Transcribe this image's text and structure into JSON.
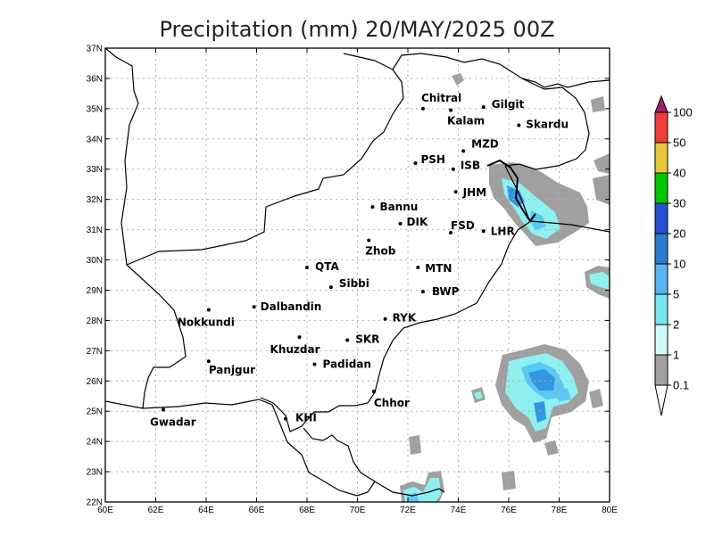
{
  "title": "Precipitation (mm) 20/MAY/2025 00Z",
  "x_ticks": [
    "60E",
    "62E",
    "64E",
    "66E",
    "68E",
    "70E",
    "72E",
    "74E",
    "76E",
    "78E",
    "80E"
  ],
  "y_ticks": [
    "22N",
    "23N",
    "24N",
    "25N",
    "26N",
    "27N",
    "28N",
    "29N",
    "30N",
    "31N",
    "32N",
    "33N",
    "34N",
    "35N",
    "36N",
    "37N"
  ],
  "lon_range": [
    60,
    80
  ],
  "lat_range": [
    22,
    37
  ],
  "grid": true,
  "colors": {
    "land": "#ffffff",
    "gray": "#a0a0a0",
    "pale": "#d4fcfc",
    "cyan": "#90f0f0",
    "light_blue": "#5ac8f0",
    "blue": "#3296e0",
    "dark_blue": "#1e5fc8"
  },
  "legend": {
    "labels": [
      "100",
      "50",
      "40",
      "30",
      "20",
      "10",
      "5",
      "2",
      "1",
      "0.1"
    ],
    "colors": [
      "#a0206e",
      "#f03c3c",
      "#e6c83c",
      "#00c800",
      "#2850d2",
      "#2a7ccc",
      "#5ab4f0",
      "#78e6f0",
      "#d2fafa",
      "#a0a0a0",
      "#ffffff"
    ]
  },
  "cities": [
    {
      "name": "Chitral",
      "lon": 72.6,
      "lat": 35.0,
      "dx": -2,
      "dy": -8
    },
    {
      "name": "Gilgit",
      "lon": 75.0,
      "lat": 35.05,
      "dx": 9,
      "dy": 1
    },
    {
      "name": "Kalam",
      "lon": 73.7,
      "lat": 34.95,
      "dx": -4,
      "dy": 16
    },
    {
      "name": "Skardu",
      "lon": 76.4,
      "lat": 34.45,
      "dx": 8,
      "dy": 3
    },
    {
      "name": "MZD",
      "lon": 74.2,
      "lat": 33.6,
      "dx": 9,
      "dy": -4
    },
    {
      "name": "PSH",
      "lon": 72.3,
      "lat": 33.2,
      "dx": 6,
      "dy": 0
    },
    {
      "name": "ISB",
      "lon": 73.8,
      "lat": 33.0,
      "dx": 8,
      "dy": 0
    },
    {
      "name": "JHM",
      "lon": 73.9,
      "lat": 32.25,
      "dx": 8,
      "dy": 5
    },
    {
      "name": "Bannu",
      "lon": 70.6,
      "lat": 31.75,
      "dx": 8,
      "dy": 4
    },
    {
      "name": "DIK",
      "lon": 71.7,
      "lat": 31.2,
      "dx": 7,
      "dy": 2
    },
    {
      "name": "FSD",
      "lon": 73.7,
      "lat": 30.9,
      "dx": 0,
      "dy": -4
    },
    {
      "name": "LHR",
      "lon": 75.0,
      "lat": 30.95,
      "dx": 8,
      "dy": 4
    },
    {
      "name": "Zhob",
      "lon": 70.45,
      "lat": 30.65,
      "dx": -4,
      "dy": 16
    },
    {
      "name": "QTA",
      "lon": 68.0,
      "lat": 29.75,
      "dx": 9,
      "dy": 3
    },
    {
      "name": "MTN",
      "lon": 72.4,
      "lat": 29.75,
      "dx": 8,
      "dy": 5
    },
    {
      "name": "Sibbi",
      "lon": 68.95,
      "lat": 29.1,
      "dx": 9,
      "dy": 0
    },
    {
      "name": "BWP",
      "lon": 72.6,
      "lat": 28.95,
      "dx": 10,
      "dy": 4
    },
    {
      "name": "Dalbandin",
      "lon": 65.9,
      "lat": 28.45,
      "dx": 7,
      "dy": 4
    },
    {
      "name": "Nokkundi",
      "lon": 64.1,
      "lat": 28.35,
      "dx": -35,
      "dy": 18
    },
    {
      "name": "RYK",
      "lon": 71.1,
      "lat": 28.05,
      "dx": 8,
      "dy": 3
    },
    {
      "name": "Khuzdar",
      "lon": 67.7,
      "lat": 27.45,
      "dx": -33,
      "dy": 18
    },
    {
      "name": "SKR",
      "lon": 69.6,
      "lat": 27.35,
      "dx": 9,
      "dy": 3
    },
    {
      "name": "Panjgur",
      "lon": 64.1,
      "lat": 26.65,
      "dx": 0,
      "dy": 14
    },
    {
      "name": "Padidan",
      "lon": 68.3,
      "lat": 26.55,
      "dx": 9,
      "dy": 4
    },
    {
      "name": "Chhor",
      "lon": 70.65,
      "lat": 25.65,
      "dx": 0,
      "dy": 17
    },
    {
      "name": "Gwadar",
      "lon": 62.3,
      "lat": 25.05,
      "dx": -15,
      "dy": 18
    },
    {
      "name": "KHI",
      "lon": 67.15,
      "lat": 24.75,
      "dx": 11,
      "dy": 3
    }
  ]
}
